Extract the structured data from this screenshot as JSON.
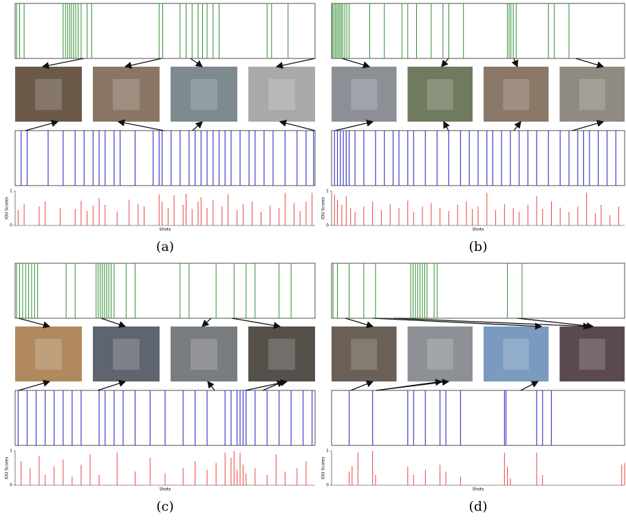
{
  "chart_data": [
    {
      "type": "bar",
      "caption": "(a)",
      "xlabel": "Shots",
      "ylabel": "IOU Scores",
      "xlim": [
        0,
        100
      ],
      "ylim": [
        0,
        1
      ],
      "yticks": [
        0,
        1
      ],
      "color": "#e8403a",
      "reference_shots": {
        "color": "#2e8b2e",
        "x": [
          0.5,
          1.5,
          3,
          16,
          16.8,
          17.5,
          18.2,
          18.8,
          19.5,
          20.2,
          21,
          22,
          24,
          25.5,
          48,
          49.2,
          55,
          57,
          59,
          61,
          62.5,
          64,
          66,
          68,
          84,
          85.5,
          91
        ]
      },
      "summary_shots": {
        "color": "#3a3ad0",
        "x": [
          2,
          4,
          11,
          16,
          20,
          23,
          26,
          28,
          30,
          33,
          35,
          40,
          46,
          48,
          49,
          52,
          55,
          58,
          60,
          62,
          64,
          66,
          68,
          70,
          72,
          75,
          78,
          80,
          83,
          86,
          90,
          94,
          97,
          99.5
        ]
      },
      "x": [
        1,
        3,
        8,
        10,
        15,
        20,
        22,
        24,
        26,
        28,
        30,
        34,
        38,
        41,
        43,
        48,
        49,
        51,
        53,
        56,
        57,
        59,
        61,
        62,
        64,
        66,
        69,
        71,
        74,
        76,
        79,
        82,
        85,
        88,
        90,
        93,
        95,
        97,
        99
      ],
      "values": [
        0.45,
        0.62,
        0.55,
        0.7,
        0.5,
        0.48,
        0.72,
        0.42,
        0.58,
        0.8,
        0.6,
        0.4,
        0.75,
        0.62,
        0.55,
        0.9,
        0.7,
        0.5,
        0.88,
        0.6,
        0.92,
        0.48,
        0.7,
        0.82,
        0.5,
        0.75,
        0.55,
        0.9,
        0.45,
        0.62,
        0.7,
        0.4,
        0.58,
        0.5,
        0.95,
        0.65,
        0.42,
        0.7,
        0.95
      ]
    },
    {
      "type": "bar",
      "caption": "(b)",
      "xlabel": "Shots",
      "ylabel": "IOU Scores",
      "xlim": [
        0,
        100
      ],
      "ylim": [
        0,
        1
      ],
      "yticks": [
        0,
        1
      ],
      "color": "#e8403a",
      "reference_shots": {
        "color": "#2e8b2e",
        "x": [
          0.3,
          0.8,
          1.3,
          1.8,
          2.3,
          2.8,
          3.3,
          3.8,
          4.5,
          5.2,
          6,
          13,
          18,
          24,
          26,
          29,
          34,
          38,
          40,
          45,
          60,
          60.6,
          61.2,
          62,
          63,
          74,
          76,
          81
        ]
      },
      "summary_shots": {
        "color": "#3a3ad0",
        "x": [
          1,
          2,
          3,
          4,
          5,
          6,
          8,
          11,
          15,
          18,
          21,
          23,
          26,
          28,
          32,
          36,
          40,
          44,
          47,
          50,
          53,
          55,
          58,
          61,
          64,
          67,
          70,
          74,
          78,
          81,
          84,
          86,
          88,
          91,
          94,
          97
        ]
      },
      "x": [
        1,
        2,
        3.5,
        5,
        6.5,
        8,
        11,
        14,
        17,
        20,
        23,
        26,
        28,
        31,
        34,
        37,
        40,
        43,
        46,
        48,
        50,
        53,
        56,
        59,
        62,
        64,
        67,
        70,
        72,
        75,
        78,
        81,
        84,
        87,
        90,
        92,
        95,
        98
      ],
      "values": [
        0.9,
        0.75,
        0.6,
        0.85,
        0.5,
        0.4,
        0.55,
        0.7,
        0.45,
        0.62,
        0.5,
        0.72,
        0.4,
        0.55,
        0.65,
        0.5,
        0.42,
        0.6,
        0.7,
        0.48,
        0.55,
        0.95,
        0.45,
        0.62,
        0.5,
        0.4,
        0.6,
        0.85,
        0.48,
        0.7,
        0.52,
        0.4,
        0.55,
        0.95,
        0.35,
        0.6,
        0.3,
        0.55
      ]
    },
    {
      "type": "bar",
      "caption": "(c)",
      "xlabel": "Shots",
      "ylabel": "IOU Scores",
      "xlim": [
        0,
        100
      ],
      "ylim": [
        0,
        1
      ],
      "yticks": [
        0,
        1
      ],
      "color": "#e8403a",
      "reference_shots": {
        "color": "#2e8b2e",
        "x": [
          0.5,
          1.5,
          2.5,
          3.5,
          4.5,
          5.5,
          6.5,
          7.5,
          17,
          20,
          27,
          27.7,
          28.4,
          29.1,
          29.8,
          30.5,
          31.2,
          32,
          33,
          37,
          40,
          55,
          58,
          67,
          73,
          77,
          80,
          88,
          92
        ]
      },
      "summary_shots": {
        "color": "#3a3ad0",
        "x": [
          1,
          4,
          7,
          10,
          13,
          16,
          19,
          22,
          28,
          30,
          33,
          36,
          40,
          45,
          50,
          56,
          60,
          64,
          70,
          72,
          74,
          75,
          76,
          77,
          80,
          84,
          88,
          92,
          96,
          99
        ]
      },
      "x": [
        2,
        5,
        8,
        10,
        13,
        16,
        19,
        22,
        25,
        28,
        34,
        40,
        45,
        50,
        56,
        60,
        64,
        67,
        70,
        72,
        73,
        74,
        75,
        76,
        77,
        80,
        84,
        87,
        90,
        94,
        97
      ],
      "values": [
        0.7,
        0.5,
        0.85,
        0.3,
        0.55,
        0.75,
        0.25,
        0.6,
        0.9,
        0.3,
        0.95,
        0.4,
        0.8,
        0.35,
        0.5,
        0.7,
        0.45,
        0.65,
        0.95,
        0.8,
        1.0,
        0.45,
        0.95,
        0.6,
        0.35,
        0.5,
        0.3,
        0.9,
        0.4,
        0.5,
        0.7
      ]
    },
    {
      "type": "bar",
      "caption": "(d)",
      "xlabel": "Shots",
      "ylabel": "IOU Scores",
      "xlim": [
        0,
        100
      ],
      "ylim": [
        0,
        1
      ],
      "yticks": [
        0,
        1
      ],
      "color": "#e8403a",
      "reference_shots": {
        "color": "#2e8b2e",
        "x": [
          0.5,
          2,
          6,
          11,
          15,
          27,
          27.8,
          28.6,
          29.4,
          30.2,
          31,
          31.8,
          32.6,
          35,
          36,
          60,
          65
        ]
      },
      "summary_shots": {
        "color": "#3a3ad0",
        "x": [
          6,
          14,
          26,
          28,
          32,
          37,
          39,
          44,
          59,
          59.5,
          70,
          72,
          75
        ]
      },
      "x": [
        6,
        7,
        9,
        14,
        15,
        26,
        28,
        32,
        37,
        39,
        44,
        59,
        60,
        61,
        70,
        72,
        99,
        100
      ],
      "values": [
        0.4,
        0.55,
        0.95,
        1.0,
        0.3,
        0.55,
        0.3,
        0.45,
        0.6,
        0.4,
        0.25,
        0.95,
        0.55,
        0.2,
        0.95,
        0.3,
        0.6,
        0.65
      ]
    }
  ]
}
